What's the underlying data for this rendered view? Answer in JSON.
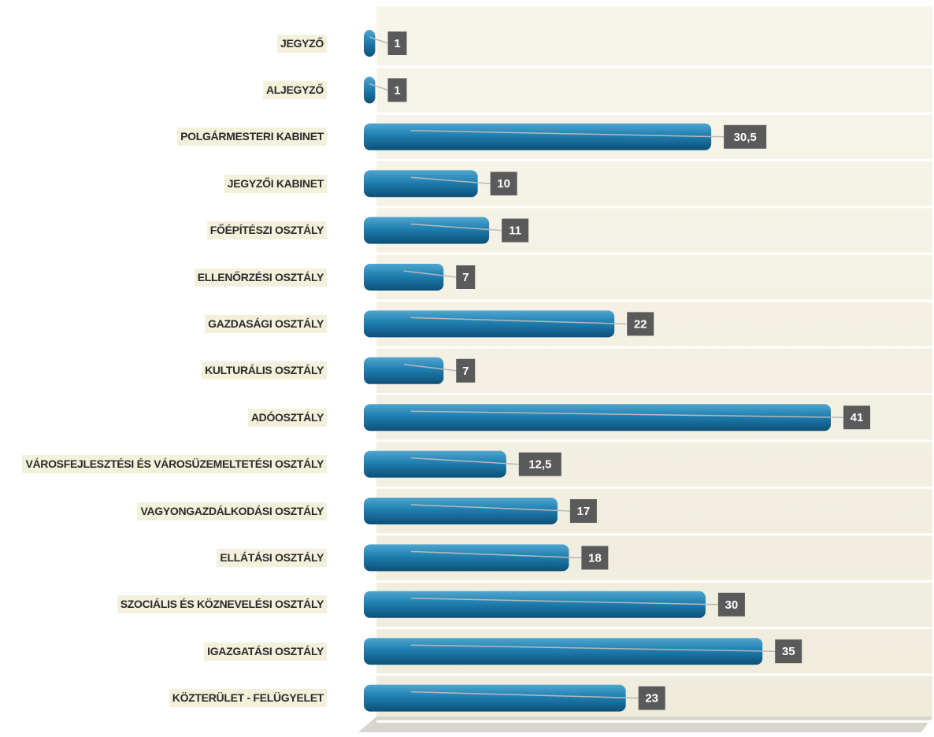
{
  "chart_data": {
    "type": "bar",
    "orientation": "horizontal",
    "categories": [
      "JEGYZŐ",
      "ALJEGYZŐ",
      "POLGÁRMESTERI KABINET",
      "JEGYZŐI KABINET",
      "FŐÉPÍTÉSZI OSZTÁLY",
      "ELLENŐRZÉSI OSZTÁLY",
      "GAZDASÁGI OSZTÁLY",
      "KULTURÁLIS OSZTÁLY",
      "ADÓOSZTÁLY",
      "VÁROSFEJLESZTÉSI ÉS VÁROSÜZEMELTETÉSI OSZTÁLY",
      "VAGYONGAZDÁLKODÁSI OSZTÁLY",
      "ELLÁTÁSI OSZTÁLY",
      "SZOCIÁLIS ÉS KÖZNEVELÉSI OSZTÁLY",
      "IGAZGATÁSI OSZTÁLY",
      "KÖZTERÜLET - FELÜGYELET"
    ],
    "values": [
      1,
      1,
      30.5,
      10,
      11,
      7,
      22,
      7,
      41,
      12.5,
      17,
      18,
      30,
      35,
      23
    ],
    "value_labels": [
      "1",
      "1",
      "30,5",
      "10",
      "11",
      "7",
      "22",
      "7",
      "41",
      "12,5",
      "17",
      "18",
      "30",
      "35",
      "23"
    ],
    "color": "#1f7fb0"
  }
}
